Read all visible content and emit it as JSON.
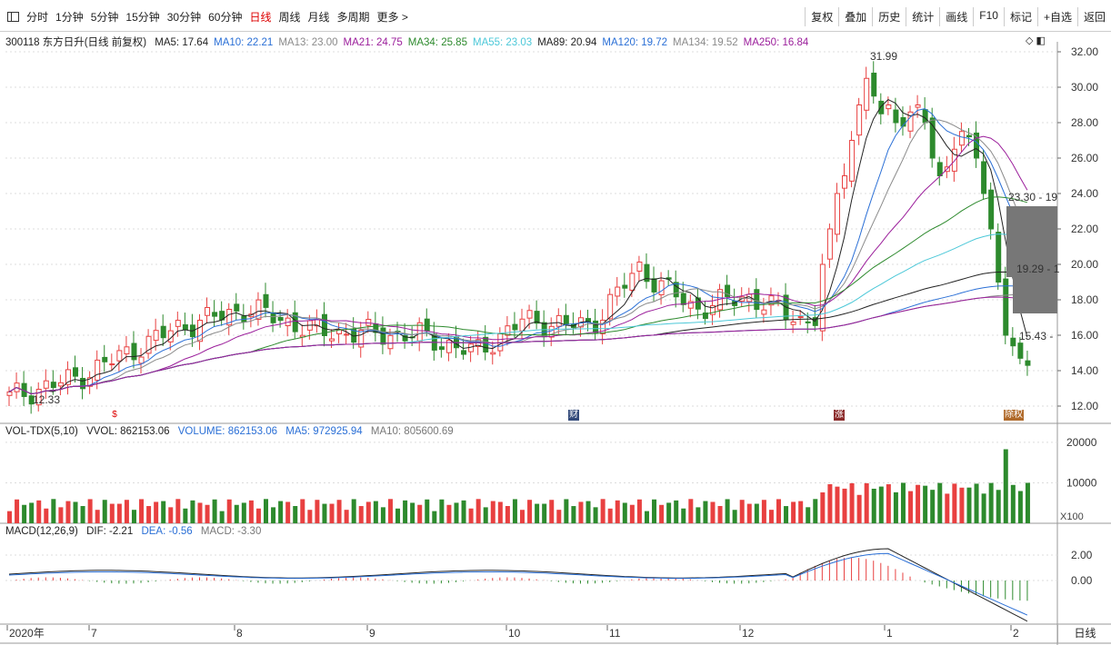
{
  "toolbar": {
    "periods": [
      "分时",
      "1分钟",
      "5分钟",
      "15分钟",
      "30分钟",
      "60分钟",
      "日线",
      "周线",
      "月线",
      "多周期",
      "更多 >"
    ],
    "active_period": "日线",
    "right_buttons": [
      "复权",
      "叠加",
      "历史",
      "统计",
      "画线",
      "F10",
      "标记",
      "+自选",
      "返回"
    ]
  },
  "price_panel": {
    "title": "300118 东方日升(日线 前复权)",
    "ma": [
      {
        "label": "MA5: 17.64",
        "color": "#222222"
      },
      {
        "label": "MA10: 22.21",
        "color": "#2a6fd6"
      },
      {
        "label": "MA13: 23.00",
        "color": "#8a8a8a"
      },
      {
        "label": "MA21: 24.75",
        "color": "#9b1e9b"
      },
      {
        "label": "MA34: 25.85",
        "color": "#2d8a2d"
      },
      {
        "label": "MA55: 23.03",
        "color": "#4cc8d8"
      },
      {
        "label": "MA89: 20.94",
        "color": "#222222"
      },
      {
        "label": "MA120: 19.72",
        "color": "#2a6fd6"
      },
      {
        "label": "MA134: 19.52",
        "color": "#8a8a8a"
      },
      {
        "label": "MA250: 16.84",
        "color": "#9b1e9b"
      }
    ],
    "y_ticks": [
      "32.00",
      "30.00",
      "28.00",
      "26.00",
      "24.00",
      "22.00",
      "20.00",
      "18.00",
      "16.00",
      "14.00",
      "12.00"
    ],
    "annotations": {
      "high": "31.99",
      "low": "12.33",
      "right1": "23.30 - 19",
      "right2": "19.29 - 1",
      "right3": "15.43 -"
    },
    "flags": [
      "$",
      "财",
      "涨",
      "除权"
    ]
  },
  "volume_panel": {
    "title": "VOL-TDX(5,10)",
    "values": [
      "VVOL: 862153.06",
      "VOLUME: 862153.06",
      "MA5: 972925.94",
      "MA10: 805600.69"
    ],
    "y_ticks": [
      "20000",
      "10000"
    ],
    "unit": "X100"
  },
  "macd_panel": {
    "title": "MACD(12,26,9)",
    "values": [
      "DIF: -2.21",
      "DEA: -0.56",
      "MACD: -3.30"
    ],
    "y_ticks": [
      "2.00",
      "0.00"
    ]
  },
  "time_axis": {
    "labels": [
      "2020年",
      "7",
      "8",
      "9",
      "10",
      "11",
      "12",
      "1",
      "2"
    ],
    "period_label": "日线"
  },
  "colors": {
    "up": "#e84040",
    "down": "#2d8a2d",
    "grid": "#dcdcdc"
  }
}
